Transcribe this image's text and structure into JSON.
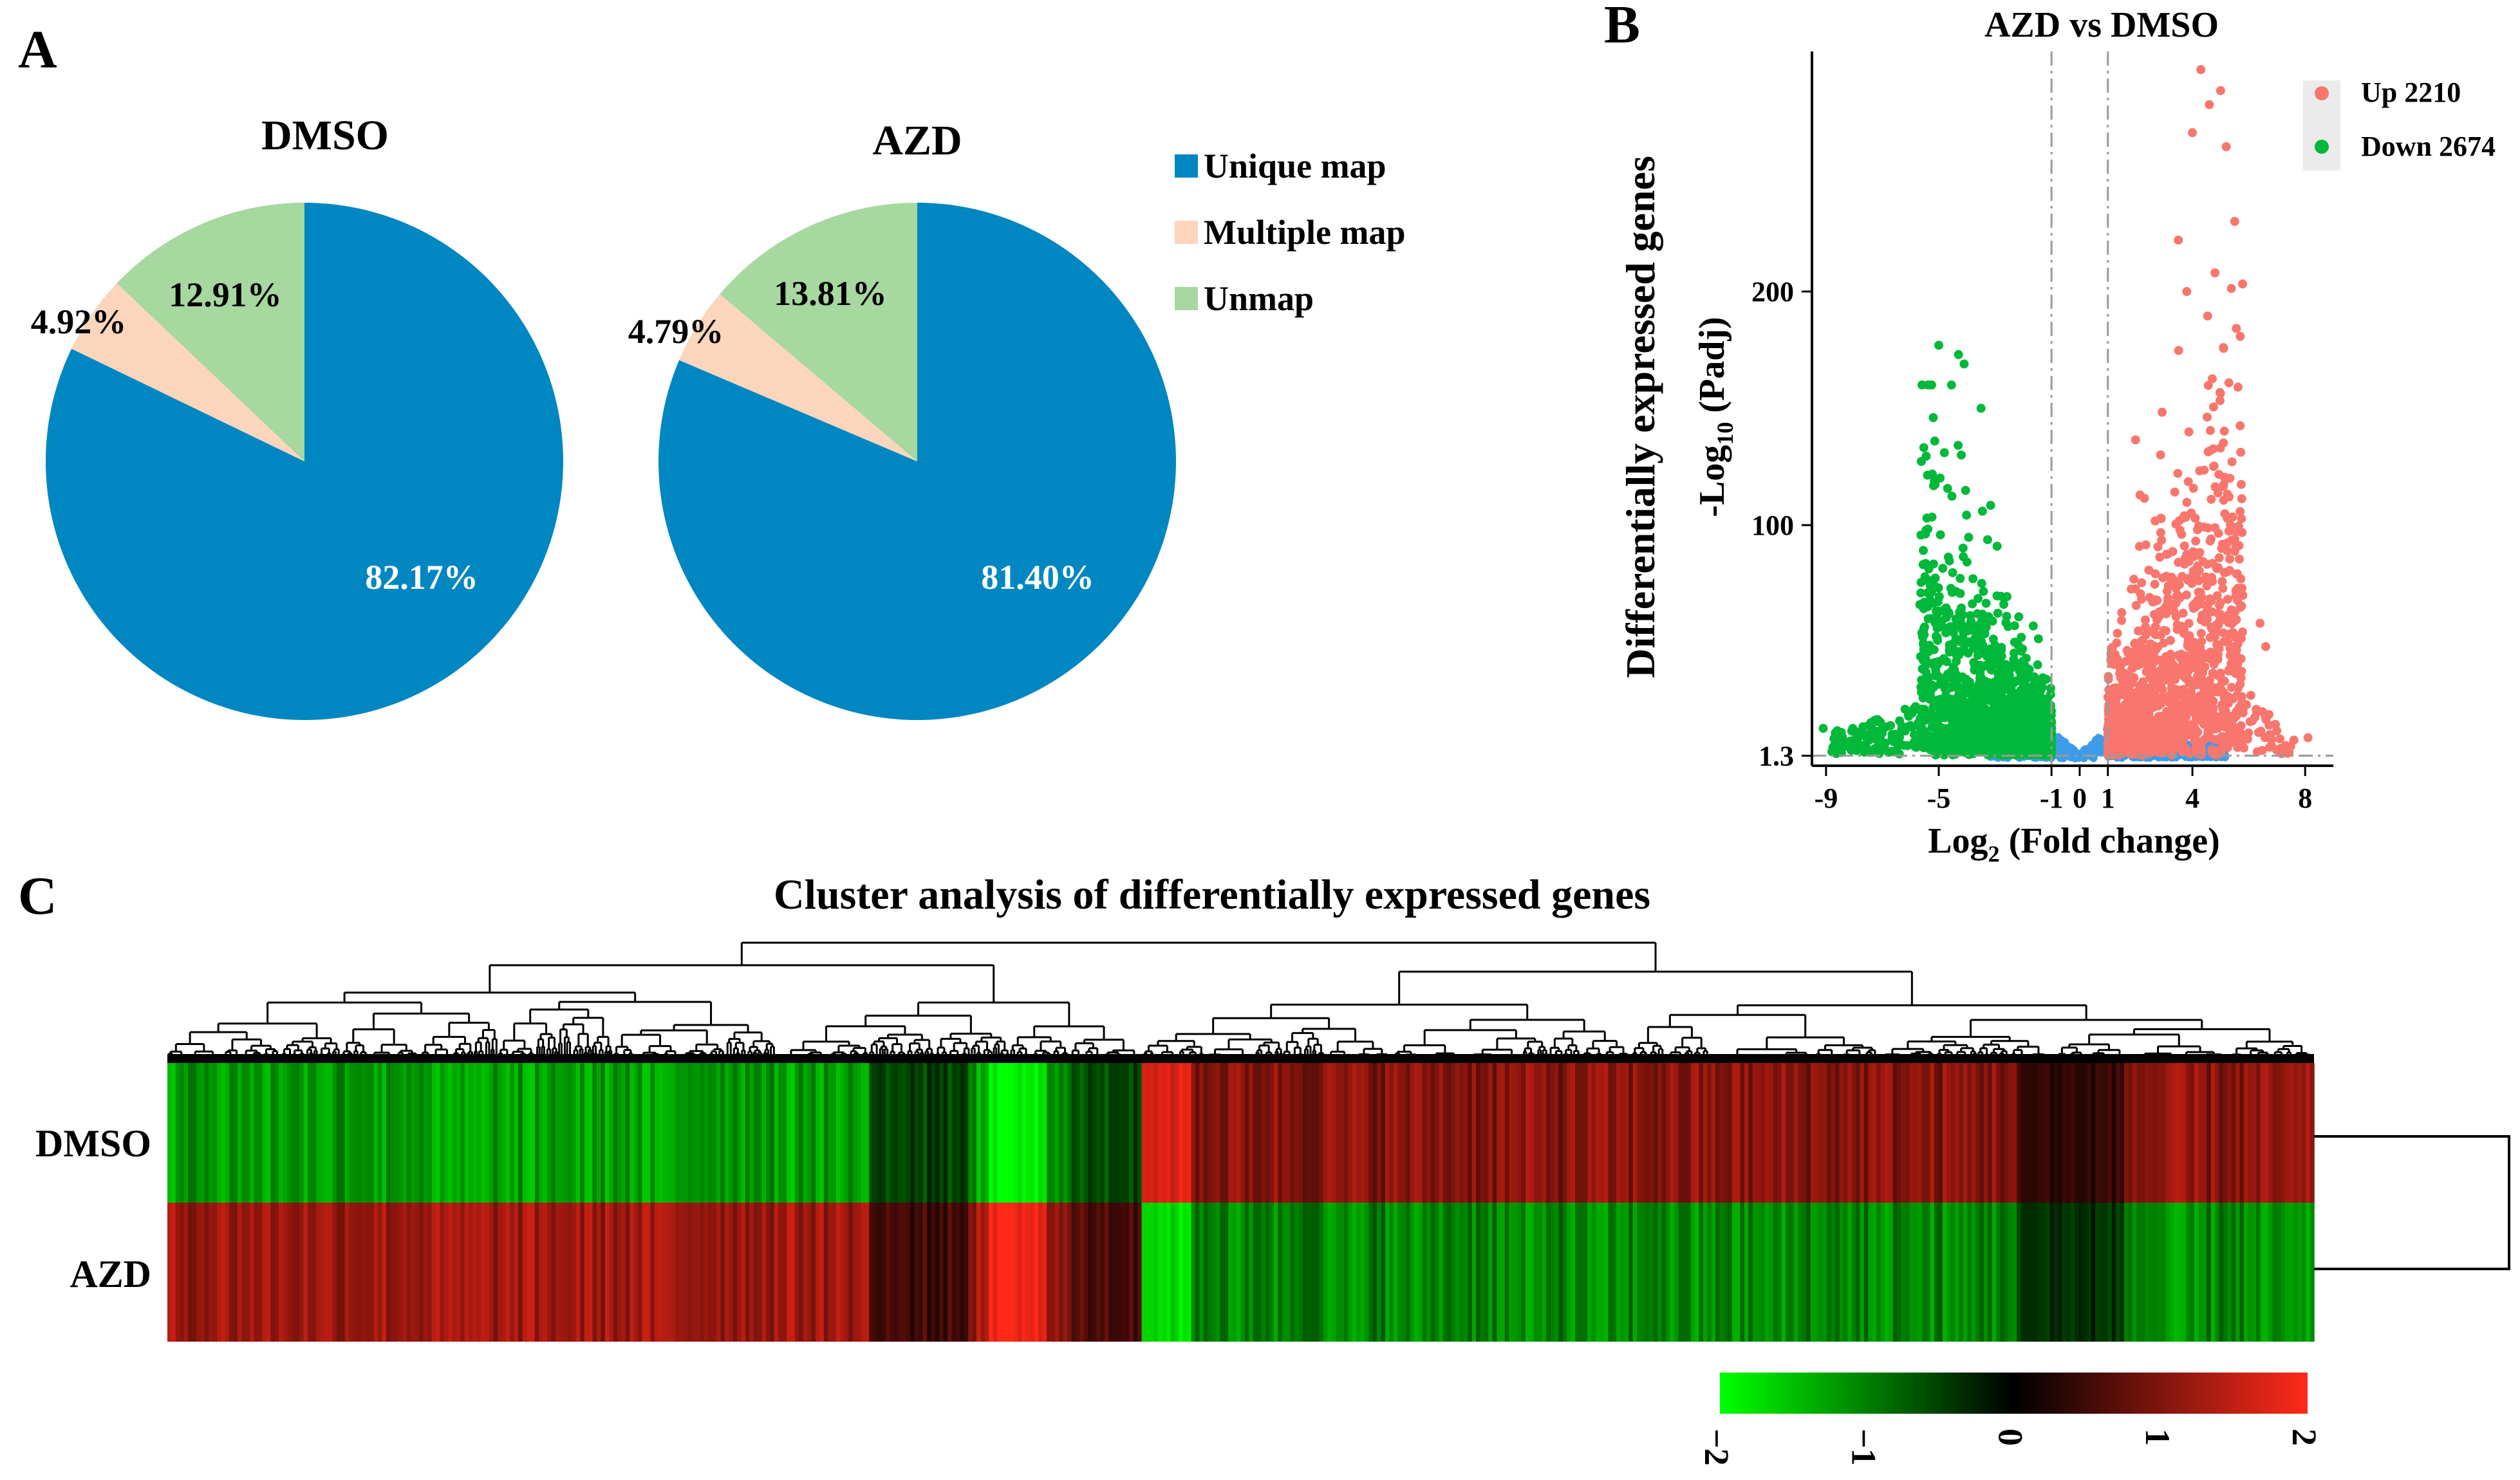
{
  "colors": {
    "unique": "#0087C1",
    "multiple": "#FCD5BD",
    "unmap": "#A6D8A0",
    "up": "#F8766D",
    "down": "#00B93A",
    "ns": "#3C9CEB",
    "heat_low": "#00FF00",
    "heat_mid": "#000000",
    "heat_high": "#FF2A1A"
  },
  "panels": {
    "a": "A",
    "b": "B",
    "c": "C"
  },
  "chart_data": [
    {
      "type": "pie",
      "title": "DMSO",
      "slices": [
        {
          "label": "Unique map",
          "value": 82.17,
          "text": "82.17%"
        },
        {
          "label": "Multiple map",
          "value": 4.92,
          "text": "4.92%"
        },
        {
          "label": "Unmap",
          "value": 12.91,
          "text": "12.91%"
        }
      ]
    },
    {
      "type": "pie",
      "title": "AZD",
      "slices": [
        {
          "label": "Unique map",
          "value": 81.4,
          "text": "81.40%"
        },
        {
          "label": "Multiple map",
          "value": 4.79,
          "text": "4.79%"
        },
        {
          "label": "Unmap",
          "value": 13.81,
          "text": "13.81%"
        }
      ],
      "legend": [
        "Unique map",
        "Multiple map",
        "Unmap"
      ]
    },
    {
      "type": "scatter",
      "title": "AZD vs DMSO",
      "outer_ylabel": "Differentially expressed genes",
      "xlabel": {
        "base": "Log",
        "sub": "2",
        "rest": " (Fold change)"
      },
      "ylabel": {
        "base": "-Log",
        "sub": "10",
        "rest": " (Padj)"
      },
      "xlim": [
        -9.5,
        9
      ],
      "ylim": [
        -3,
        300
      ],
      "xticks": [
        -9,
        -5,
        -1,
        0,
        1,
        4,
        8
      ],
      "yticks": [
        1.3,
        100,
        200
      ],
      "ref_lines": {
        "vertical": [
          -1,
          1
        ],
        "horizontal": 1.3
      },
      "legend": [
        {
          "label": "Up 2210",
          "count": 2210,
          "color_key": "up"
        },
        {
          "label": "Down 2674",
          "count": 2674,
          "color_key": "down"
        }
      ],
      "highlight_points": [
        {
          "x": 4.3,
          "y": 295,
          "class": "up"
        },
        {
          "x": 4.6,
          "y": 280,
          "class": "up"
        },
        {
          "x": 5.0,
          "y": 286,
          "class": "up"
        },
        {
          "x": 4.0,
          "y": 268,
          "class": "up"
        },
        {
          "x": 5.2,
          "y": 262,
          "class": "up"
        },
        {
          "x": 5.5,
          "y": 230,
          "class": "up"
        },
        {
          "x": 3.5,
          "y": 222,
          "class": "up"
        },
        {
          "x": 4.8,
          "y": 208,
          "class": "up"
        },
        {
          "x": 3.8,
          "y": 200,
          "class": "up"
        },
        {
          "x": 5.1,
          "y": 176,
          "class": "up"
        },
        {
          "x": 6.4,
          "y": 58,
          "class": "up"
        },
        {
          "x": 6.6,
          "y": 48,
          "class": "up"
        },
        {
          "x": 7.6,
          "y": 8,
          "class": "up"
        },
        {
          "x": 8.1,
          "y": 9,
          "class": "up"
        },
        {
          "x": -5.0,
          "y": 177,
          "class": "down"
        },
        {
          "x": -4.3,
          "y": 173,
          "class": "down"
        },
        {
          "x": -4.1,
          "y": 169,
          "class": "down"
        },
        {
          "x": -3.5,
          "y": 150,
          "class": "down"
        },
        {
          "x": -4.8,
          "y": 131,
          "class": "down"
        },
        {
          "x": -4.2,
          "y": 130,
          "class": "down"
        },
        {
          "x": -8.0,
          "y": 12,
          "class": "down"
        },
        {
          "x": -8.6,
          "y": 12,
          "class": "down"
        },
        {
          "x": -9.1,
          "y": 13,
          "class": "down"
        },
        {
          "x": -7.2,
          "y": 10,
          "class": "down"
        }
      ]
    },
    {
      "type": "heatmap",
      "title": "Cluster analysis of differentially expressed genes",
      "rows": [
        "DMSO",
        "AZD"
      ],
      "split_fraction": 0.453,
      "colorbar": {
        "min": -2,
        "max": 2,
        "ticks": [
          "−2",
          "−1",
          "0",
          "1",
          "2"
        ]
      }
    }
  ]
}
